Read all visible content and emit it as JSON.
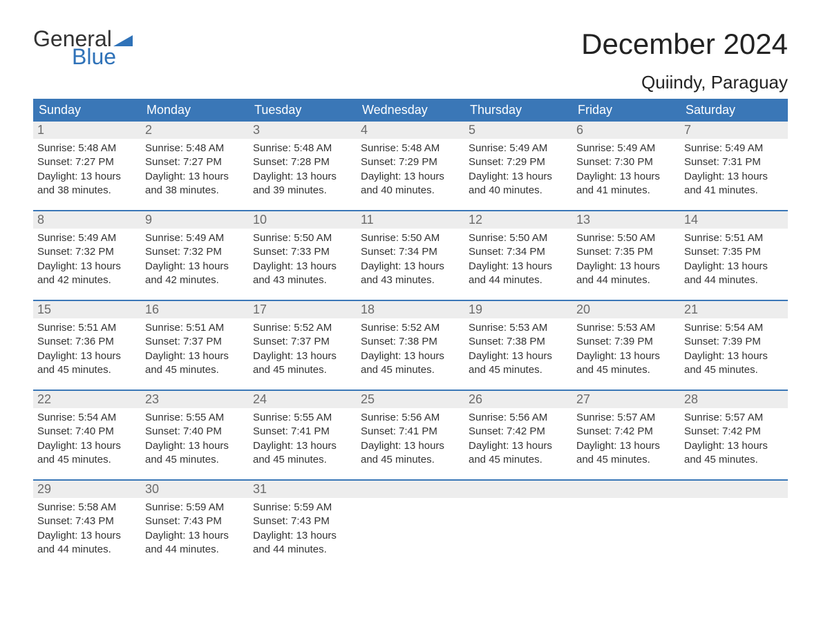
{
  "logo": {
    "general": "General",
    "blue": "Blue",
    "flag_color": "#2f72b8"
  },
  "title": "December 2024",
  "location": "Quiindy, Paraguay",
  "colors": {
    "header_bg": "#3a77b7",
    "header_text": "#ffffff",
    "daynum_bg": "#ededed",
    "daynum_text": "#6b6b6b",
    "body_text": "#333333",
    "rule": "#3a77b7"
  },
  "weekdays": [
    "Sunday",
    "Monday",
    "Tuesday",
    "Wednesday",
    "Thursday",
    "Friday",
    "Saturday"
  ],
  "days": [
    {
      "n": "1",
      "sunrise": "5:48 AM",
      "sunset": "7:27 PM",
      "dl_h": "13",
      "dl_m": "38"
    },
    {
      "n": "2",
      "sunrise": "5:48 AM",
      "sunset": "7:27 PM",
      "dl_h": "13",
      "dl_m": "38"
    },
    {
      "n": "3",
      "sunrise": "5:48 AM",
      "sunset": "7:28 PM",
      "dl_h": "13",
      "dl_m": "39"
    },
    {
      "n": "4",
      "sunrise": "5:48 AM",
      "sunset": "7:29 PM",
      "dl_h": "13",
      "dl_m": "40"
    },
    {
      "n": "5",
      "sunrise": "5:49 AM",
      "sunset": "7:29 PM",
      "dl_h": "13",
      "dl_m": "40"
    },
    {
      "n": "6",
      "sunrise": "5:49 AM",
      "sunset": "7:30 PM",
      "dl_h": "13",
      "dl_m": "41"
    },
    {
      "n": "7",
      "sunrise": "5:49 AM",
      "sunset": "7:31 PM",
      "dl_h": "13",
      "dl_m": "41"
    },
    {
      "n": "8",
      "sunrise": "5:49 AM",
      "sunset": "7:32 PM",
      "dl_h": "13",
      "dl_m": "42"
    },
    {
      "n": "9",
      "sunrise": "5:49 AM",
      "sunset": "7:32 PM",
      "dl_h": "13",
      "dl_m": "42"
    },
    {
      "n": "10",
      "sunrise": "5:50 AM",
      "sunset": "7:33 PM",
      "dl_h": "13",
      "dl_m": "43"
    },
    {
      "n": "11",
      "sunrise": "5:50 AM",
      "sunset": "7:34 PM",
      "dl_h": "13",
      "dl_m": "43"
    },
    {
      "n": "12",
      "sunrise": "5:50 AM",
      "sunset": "7:34 PM",
      "dl_h": "13",
      "dl_m": "44"
    },
    {
      "n": "13",
      "sunrise": "5:50 AM",
      "sunset": "7:35 PM",
      "dl_h": "13",
      "dl_m": "44"
    },
    {
      "n": "14",
      "sunrise": "5:51 AM",
      "sunset": "7:35 PM",
      "dl_h": "13",
      "dl_m": "44"
    },
    {
      "n": "15",
      "sunrise": "5:51 AM",
      "sunset": "7:36 PM",
      "dl_h": "13",
      "dl_m": "45"
    },
    {
      "n": "16",
      "sunrise": "5:51 AM",
      "sunset": "7:37 PM",
      "dl_h": "13",
      "dl_m": "45"
    },
    {
      "n": "17",
      "sunrise": "5:52 AM",
      "sunset": "7:37 PM",
      "dl_h": "13",
      "dl_m": "45"
    },
    {
      "n": "18",
      "sunrise": "5:52 AM",
      "sunset": "7:38 PM",
      "dl_h": "13",
      "dl_m": "45"
    },
    {
      "n": "19",
      "sunrise": "5:53 AM",
      "sunset": "7:38 PM",
      "dl_h": "13",
      "dl_m": "45"
    },
    {
      "n": "20",
      "sunrise": "5:53 AM",
      "sunset": "7:39 PM",
      "dl_h": "13",
      "dl_m": "45"
    },
    {
      "n": "21",
      "sunrise": "5:54 AM",
      "sunset": "7:39 PM",
      "dl_h": "13",
      "dl_m": "45"
    },
    {
      "n": "22",
      "sunrise": "5:54 AM",
      "sunset": "7:40 PM",
      "dl_h": "13",
      "dl_m": "45"
    },
    {
      "n": "23",
      "sunrise": "5:55 AM",
      "sunset": "7:40 PM",
      "dl_h": "13",
      "dl_m": "45"
    },
    {
      "n": "24",
      "sunrise": "5:55 AM",
      "sunset": "7:41 PM",
      "dl_h": "13",
      "dl_m": "45"
    },
    {
      "n": "25",
      "sunrise": "5:56 AM",
      "sunset": "7:41 PM",
      "dl_h": "13",
      "dl_m": "45"
    },
    {
      "n": "26",
      "sunrise": "5:56 AM",
      "sunset": "7:42 PM",
      "dl_h": "13",
      "dl_m": "45"
    },
    {
      "n": "27",
      "sunrise": "5:57 AM",
      "sunset": "7:42 PM",
      "dl_h": "13",
      "dl_m": "45"
    },
    {
      "n": "28",
      "sunrise": "5:57 AM",
      "sunset": "7:42 PM",
      "dl_h": "13",
      "dl_m": "45"
    },
    {
      "n": "29",
      "sunrise": "5:58 AM",
      "sunset": "7:43 PM",
      "dl_h": "13",
      "dl_m": "44"
    },
    {
      "n": "30",
      "sunrise": "5:59 AM",
      "sunset": "7:43 PM",
      "dl_h": "13",
      "dl_m": "44"
    },
    {
      "n": "31",
      "sunrise": "5:59 AM",
      "sunset": "7:43 PM",
      "dl_h": "13",
      "dl_m": "44"
    }
  ],
  "labels": {
    "sunrise": "Sunrise: ",
    "sunset": "Sunset: ",
    "daylight_prefix": "Daylight: ",
    "hours": " hours",
    "and": "and ",
    "minutes": " minutes."
  },
  "layout": {
    "start_weekday_index": 0,
    "weeks": 5,
    "total_cells": 35
  }
}
